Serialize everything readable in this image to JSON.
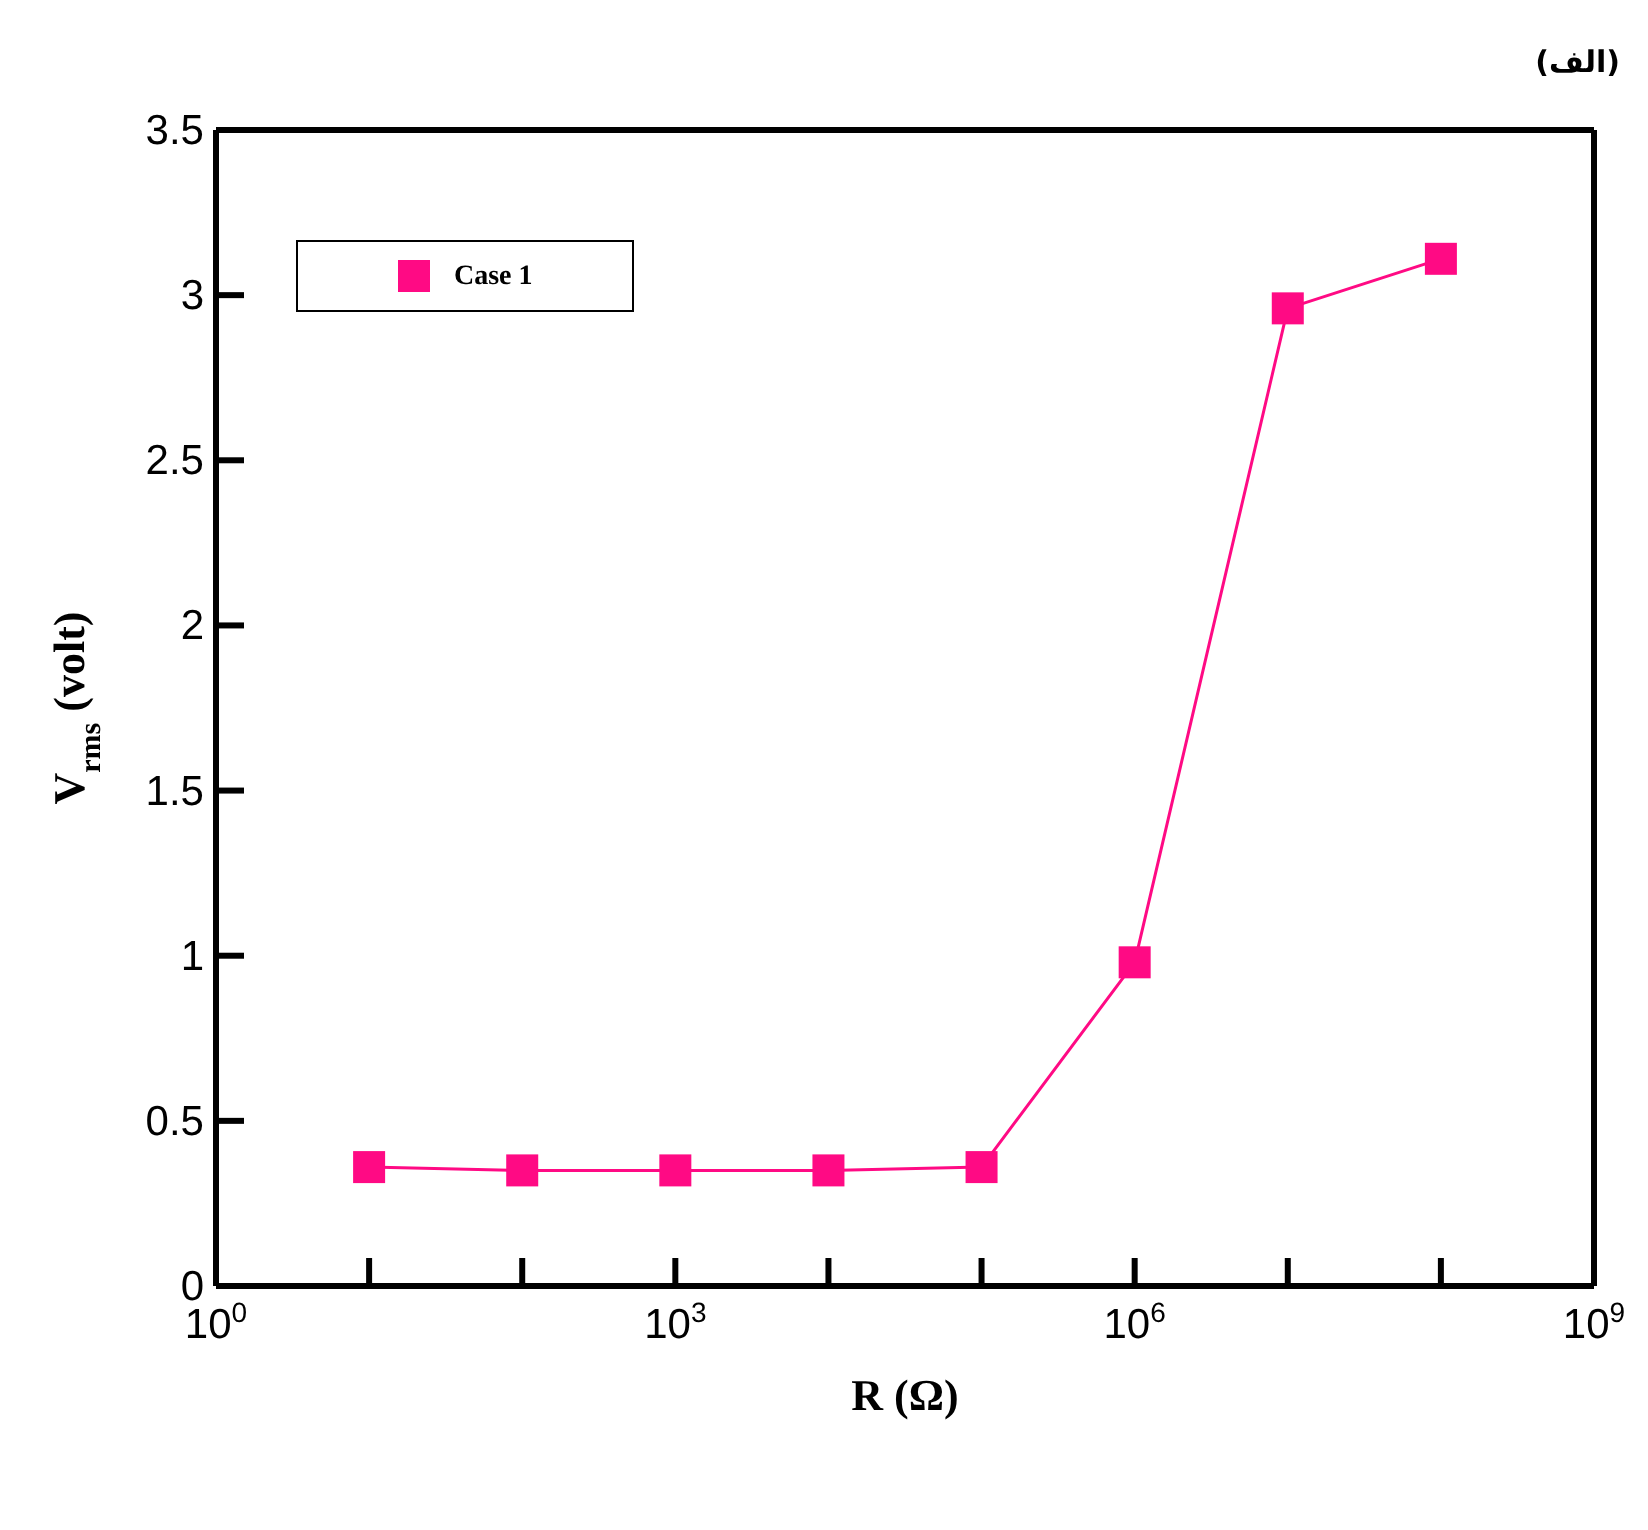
{
  "chart_data": {
    "type": "line",
    "annotations": [
      "(الف)"
    ],
    "xlabel": "R (Ω)",
    "ylabel": "V$_{rms}$ (volt)",
    "x": [
      10,
      100,
      1000,
      10000,
      100000,
      1000000,
      10000000,
      100000000
    ],
    "series": [
      {
        "name": "Case 1",
        "color": "#ff0a84",
        "values": [
          0.36,
          0.35,
          0.35,
          0.35,
          0.36,
          0.98,
          2.96,
          3.11
        ]
      }
    ],
    "log": "x",
    "xlim": [
      1,
      1000000000
    ],
    "xticks": [
      {
        "value": 1,
        "label": "10$^{0}$"
      },
      {
        "value": 10,
        "label": null
      },
      {
        "value": 100,
        "label": null
      },
      {
        "value": 1000,
        "label": "10$^{3}$"
      },
      {
        "value": 10000,
        "label": null
      },
      {
        "value": 100000,
        "label": null
      },
      {
        "value": 1000000,
        "label": "10$^{6}$"
      },
      {
        "value": 10000000,
        "label": null
      },
      {
        "value": 100000000,
        "label": null
      },
      {
        "value": 1000000000,
        "label": "10$^{9}$"
      }
    ],
    "ylim": [
      0,
      3.5
    ],
    "yticks": [
      0,
      0.5,
      1,
      1.5,
      2,
      2.5,
      3,
      3.5
    ],
    "grid": false,
    "legend": "top left",
    "marker": "square",
    "line_style": "solid"
  }
}
